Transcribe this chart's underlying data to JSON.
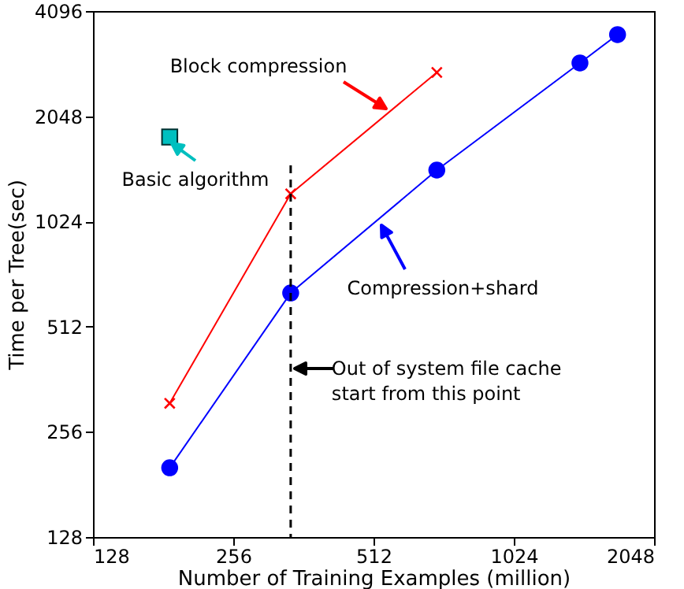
{
  "chart_data": {
    "type": "line",
    "xlabel": "Number of Training Examples (million)",
    "ylabel": "Time per Tree(sec)",
    "log": "xy",
    "xlim": [
      128,
      2048
    ],
    "xticks": [
      128,
      256,
      512,
      1024,
      2048
    ],
    "ylim": [
      128,
      4096
    ],
    "yticks": [
      128,
      256,
      512,
      1024,
      2048,
      4096
    ],
    "grid": false,
    "legend": "left",
    "series": [
      {
        "name": "Block compression",
        "color": "#ff0000",
        "marker": "cross",
        "x": [
          187,
          340,
          700
        ],
        "values": [
          309,
          1228,
          2733
        ]
      },
      {
        "name": "Compression+shard",
        "color": "#0000ff",
        "marker": "circle",
        "x": [
          187,
          340,
          700,
          1420,
          1710
        ],
        "values": [
          202,
          639,
          1436,
          2909,
          3507
        ]
      },
      {
        "name": "Basic algorithm",
        "type": "scatter",
        "color": "#00bfbf",
        "marker": "square",
        "x": [
          187
        ],
        "values": [
          1786
        ]
      }
    ],
    "ref_lines": [
      {
        "axis": "x",
        "value": 340,
        "label": "Out of system file cache\nstart from this point",
        "color": "#000000",
        "line_style": "dashed"
      }
    ]
  }
}
